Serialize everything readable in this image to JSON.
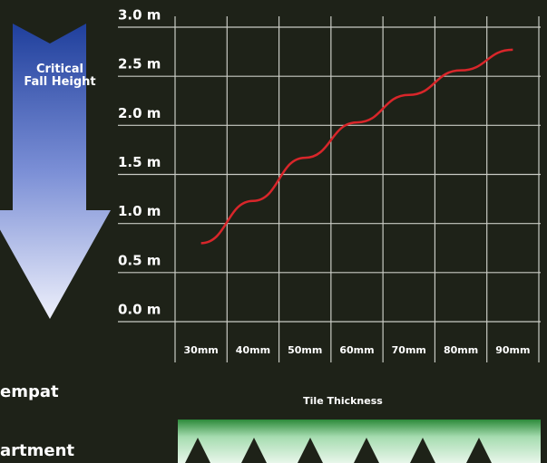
{
  "chart_data": {
    "type": "line",
    "y_label": "Critical Fall Height",
    "x_label": "Tile Thickness",
    "categories": [
      "30mm",
      "40mm",
      "50mm",
      "60mm",
      "70mm",
      "80mm",
      "90mm"
    ],
    "values": [
      0.8,
      1.23,
      1.67,
      2.03,
      2.31,
      2.56,
      2.77
    ],
    "color": "#d8262a",
    "ylim": [
      0,
      3
    ],
    "yticks": [
      {
        "value": 0,
        "label": "0.0 m"
      },
      {
        "value": 0.5,
        "label": "0.5 m"
      },
      {
        "value": 1,
        "label": "1.0 m"
      },
      {
        "value": 1.5,
        "label": "1.5 m"
      },
      {
        "value": 2,
        "label": "2.0 m"
      },
      {
        "value": 2.5,
        "label": "2.5 m"
      },
      {
        "value": 3,
        "label": "3.0 m"
      }
    ],
    "grid": true
  },
  "fragments": [
    "empat",
    "artment"
  ]
}
